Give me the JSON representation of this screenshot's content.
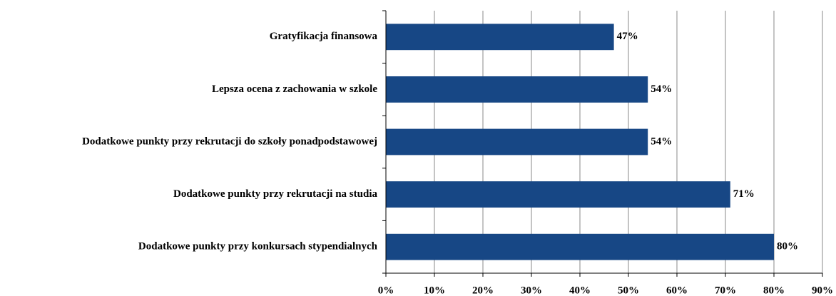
{
  "chart_data": {
    "type": "bar",
    "orientation": "horizontal",
    "categories": [
      "Gratyfikacja finansowa",
      "Lepsza ocena z zachowania w szkole",
      "Dodatkowe punkty przy rekrutacji do szkoły ponadpodstawowej",
      "Dodatkowe punkty przy rekrutacji na studia",
      "Dodatkowe punkty przy konkursach stypendialnych"
    ],
    "values": [
      47,
      54,
      54,
      71,
      80
    ],
    "value_labels": [
      "47%",
      "54%",
      "54%",
      "71%",
      "80%"
    ],
    "color": "#174785",
    "xlim": [
      0,
      90
    ],
    "xticks": [
      {
        "value": 0,
        "label": "0%"
      },
      {
        "value": 10,
        "label": "10%"
      },
      {
        "value": 20,
        "label": "20%"
      },
      {
        "value": 30,
        "label": "30%"
      },
      {
        "value": 40,
        "label": "40%"
      },
      {
        "value": 50,
        "label": "50%"
      },
      {
        "value": 60,
        "label": "60%"
      },
      {
        "value": 70,
        "label": "70%"
      },
      {
        "value": 80,
        "label": "80%"
      },
      {
        "value": 90,
        "label": "90%"
      }
    ],
    "grid": true
  }
}
